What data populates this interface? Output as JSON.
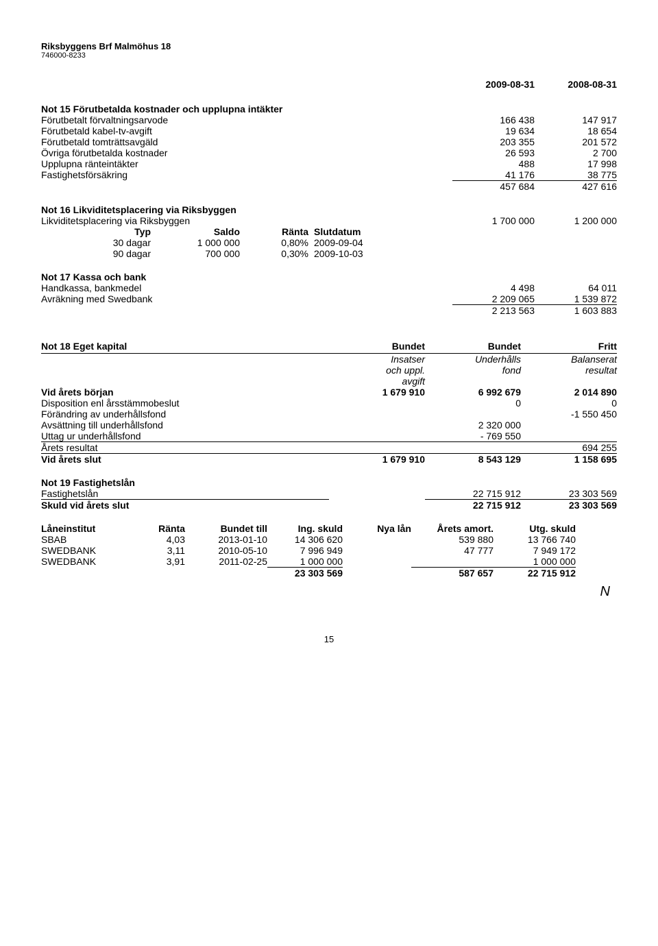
{
  "header": {
    "title": "Riksbyggens Brf Malmöhus 18",
    "orgnr": "746000-8233"
  },
  "dates": {
    "d1": "2009-08-31",
    "d2": "2008-08-31"
  },
  "not15": {
    "title": "Not 15  Förutbetalda kostnader och upplupna intäkter",
    "rows": [
      {
        "label": "Förutbetalt förvaltningsarvode",
        "v1": "166 438",
        "v2": "147 917"
      },
      {
        "label": "Förutbetald kabel-tv-avgift",
        "v1": "19 634",
        "v2": "18 654"
      },
      {
        "label": "Förutbetald tomträttsavgäld",
        "v1": "203 355",
        "v2": "201 572"
      },
      {
        "label": "Övriga förutbetalda kostnader",
        "v1": "26 593",
        "v2": "2 700"
      },
      {
        "label": "Upplupna ränteintäkter",
        "v1": "488",
        "v2": "17 998"
      },
      {
        "label": "Fastighetsförsäkring",
        "v1": "41 176",
        "v2": "38 775"
      }
    ],
    "sum": {
      "v1": "457 684",
      "v2": "427 616"
    }
  },
  "not16": {
    "title": "Not 16  Likviditetsplacering via Riksbyggen",
    "line": {
      "label": "Likviditetsplacering via Riksbyggen",
      "v1": "1 700 000",
      "v2": "1 200 000"
    },
    "headers": {
      "typ": "Typ",
      "saldo": "Saldo",
      "ranta": "Ränta",
      "slut": "Slutdatum"
    },
    "rows": [
      {
        "typ": "30 dagar",
        "saldo": "1 000 000",
        "ranta": "0,80%",
        "slut": "2009-09-04"
      },
      {
        "typ": "90 dagar",
        "saldo": "700 000",
        "ranta": "0,30%",
        "slut": "2009-10-03"
      }
    ]
  },
  "not17": {
    "title": "Not 17  Kassa och bank",
    "rows": [
      {
        "label": "Handkassa, bankmedel",
        "v1": "4 498",
        "v2": "64 011"
      },
      {
        "label": "Avräkning med Swedbank",
        "v1": "2 209 065",
        "v2": "1 539 872"
      }
    ],
    "sum": {
      "v1": "2 213 563",
      "v2": "1 603 883"
    }
  },
  "not18": {
    "title": "Not 18  Eget kapital",
    "headers": {
      "c1": "Bundet",
      "c2": "Bundet",
      "c3": "Fritt"
    },
    "sub": {
      "c1a": "Insatser",
      "c1b": "och uppl.",
      "c1c": "avgift",
      "c2a": "Underhålls",
      "c2b": "fond",
      "c3a": "Balanserat",
      "c3b": "resultat"
    },
    "rows": [
      {
        "label": "Vid årets början",
        "c1": "1 679 910",
        "c2": "6 992 679",
        "c3": "2 014 890",
        "bold": true
      },
      {
        "label": "Disposition enl årsstämmobeslut",
        "c1": "",
        "c2": "0",
        "c3": "0"
      },
      {
        "label": "Förändring av underhållsfond",
        "c1": "",
        "c2": "",
        "c3": "-1 550 450"
      },
      {
        "label": "Avsättning till underhållsfond",
        "c1": "",
        "c2": "2 320 000",
        "c3": ""
      },
      {
        "label": "Uttag ur underhållsfond",
        "c1": "",
        "c2": "- 769 550",
        "c3": ""
      },
      {
        "label": "Årets resultat",
        "c1": "",
        "c2": "",
        "c3": "694 255"
      }
    ],
    "end": {
      "label": "Vid årets slut",
      "c1": "1 679 910",
      "c2": "8 543 129",
      "c3": "1 158 695"
    }
  },
  "not19": {
    "title": "Not 19  Fastighetslån",
    "line": {
      "label": "Fastighetslån",
      "v1": "22 715 912",
      "v2": "23 303 569"
    },
    "end": {
      "label": "Skuld vid årets slut",
      "v1": "22 715 912",
      "v2": "23 303 569"
    },
    "loanhead": {
      "inst": "Låneinstitut",
      "ranta": "Ränta",
      "bundet": "Bundet till",
      "ing": "Ing. skuld",
      "nya": "Nya lån",
      "amort": "Årets amort.",
      "utg": "Utg. skuld"
    },
    "loans": [
      {
        "inst": "SBAB",
        "ranta": "4,03",
        "bundet": "2013-01-10",
        "ing": "14 306 620",
        "nya": "",
        "amort": "539 880",
        "utg": "13 766 740"
      },
      {
        "inst": "SWEDBANK",
        "ranta": "3,11",
        "bundet": "2010-05-10",
        "ing": "7 996 949",
        "nya": "",
        "amort": "47 777",
        "utg": "7 949 172"
      },
      {
        "inst": "SWEDBANK",
        "ranta": "3,91",
        "bundet": "2011-02-25",
        "ing": "1 000 000",
        "nya": "",
        "amort": "",
        "utg": "1 000 000"
      }
    ],
    "loansum": {
      "ing": "23 303 569",
      "amort": "587 657",
      "utg": "22 715 912"
    }
  },
  "signature": "N",
  "pagenum": "15"
}
